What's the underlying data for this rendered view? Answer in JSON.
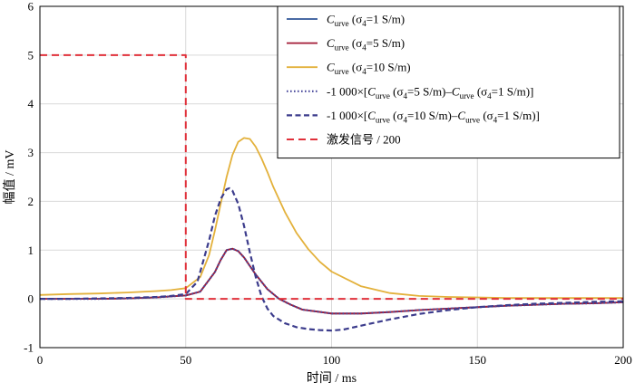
{
  "chart_data": {
    "type": "line",
    "title": "",
    "xlabel": "时间 / ms",
    "ylabel": "幅值 / mV",
    "xlim": [
      0,
      200
    ],
    "ylim": [
      -1,
      6
    ],
    "xticks": [
      0,
      50,
      100,
      150,
      200
    ],
    "yticks": [
      -1,
      0,
      1,
      2,
      3,
      4,
      5,
      6
    ],
    "grid": true,
    "legend_position": "top-right",
    "series": [
      {
        "name": "Curve (σ4=1 S/m)",
        "legend_label": {
          "main": "C",
          "sub": "urve",
          "rest": " (σ",
          "sub2": "4",
          "tail": "=1 S/m)"
        },
        "color": "#2f5597",
        "dash": "solid",
        "x": [
          0,
          10,
          20,
          30,
          40,
          45,
          50,
          55,
          60,
          62,
          64,
          66,
          68,
          70,
          74,
          78,
          82,
          86,
          90,
          100,
          110,
          120,
          130,
          140,
          150,
          160,
          170,
          180,
          190,
          200
        ],
        "y": [
          0.0,
          0.0,
          0.0,
          0.01,
          0.03,
          0.05,
          0.07,
          0.15,
          0.55,
          0.8,
          1.0,
          1.03,
          0.98,
          0.85,
          0.5,
          0.2,
          0.0,
          -0.12,
          -0.22,
          -0.3,
          -0.3,
          -0.27,
          -0.23,
          -0.2,
          -0.17,
          -0.14,
          -0.12,
          -0.1,
          -0.09,
          -0.07
        ]
      },
      {
        "name": "Curve (σ4=5 S/m)",
        "legend_label": {
          "main": "C",
          "sub": "urve",
          "rest": " (σ",
          "sub2": "4",
          "tail": "=5 S/m)"
        },
        "color": "#a31a35",
        "dash": "solid",
        "x": [
          0,
          10,
          20,
          30,
          40,
          45,
          50,
          55,
          60,
          62,
          64,
          66,
          68,
          70,
          74,
          78,
          82,
          86,
          90,
          100,
          110,
          120,
          130,
          140,
          150,
          160,
          170,
          180,
          190,
          200
        ],
        "y": [
          0.0,
          0.0,
          0.0,
          0.01,
          0.03,
          0.05,
          0.07,
          0.15,
          0.55,
          0.8,
          1.0,
          1.03,
          0.98,
          0.85,
          0.5,
          0.2,
          0.0,
          -0.12,
          -0.22,
          -0.3,
          -0.3,
          -0.27,
          -0.23,
          -0.2,
          -0.17,
          -0.14,
          -0.12,
          -0.1,
          -0.09,
          -0.07
        ]
      },
      {
        "name": "Curve (σ4=10 S/m)",
        "legend_label": {
          "main": "C",
          "sub": "urve",
          "rest": " (σ",
          "sub2": "4",
          "tail": "=10 S/m)"
        },
        "color": "#e3b13b",
        "dash": "solid",
        "x": [
          0,
          10,
          20,
          30,
          40,
          45,
          50,
          55,
          58,
          60,
          62,
          64,
          66,
          68,
          70,
          72,
          74,
          76,
          78,
          80,
          84,
          88,
          92,
          96,
          100,
          110,
          120,
          130,
          140,
          150,
          160,
          170,
          180,
          190,
          200
        ],
        "y": [
          0.08,
          0.1,
          0.11,
          0.13,
          0.16,
          0.18,
          0.22,
          0.45,
          0.9,
          1.4,
          1.95,
          2.5,
          2.95,
          3.22,
          3.3,
          3.28,
          3.12,
          2.88,
          2.6,
          2.3,
          1.78,
          1.35,
          1.02,
          0.76,
          0.56,
          0.26,
          0.12,
          0.06,
          0.04,
          0.03,
          0.02,
          0.02,
          0.02,
          0.02,
          0.02
        ]
      },
      {
        "name": "-1 000×[Curve (σ4=5 S/m)–Curve (σ4=1 S/m)]",
        "legend_label": {
          "prefix": "-1 000×[",
          "main": "C",
          "sub": "urve",
          "rest": " (σ",
          "sub2": "4",
          "tail": "=5 S/m)–",
          "main2": "C",
          "sub3": "urve",
          "rest2": " (σ",
          "sub4": "4",
          "tail2": "=1 S/m)]"
        },
        "color": "#4a4a9c",
        "dash": "dotted",
        "x": [
          0,
          10,
          20,
          30,
          40,
          45,
          50,
          55,
          60,
          62,
          64,
          66,
          68,
          70,
          74,
          78,
          82,
          86,
          90,
          100,
          110,
          120,
          130,
          140,
          150,
          160,
          170,
          180,
          190,
          200
        ],
        "y": [
          0.0,
          0.0,
          0.0,
          0.01,
          0.03,
          0.05,
          0.07,
          0.15,
          0.55,
          0.8,
          1.0,
          1.03,
          0.98,
          0.85,
          0.5,
          0.2,
          0.0,
          -0.12,
          -0.22,
          -0.3,
          -0.3,
          -0.27,
          -0.23,
          -0.2,
          -0.17,
          -0.14,
          -0.12,
          -0.1,
          -0.09,
          -0.07
        ]
      },
      {
        "name": "-1 000×[Curve (σ4=10 S/m)–Curve (σ4=1 S/m)]",
        "legend_label": {
          "prefix": "-1 000×[",
          "main": "C",
          "sub": "urve",
          "rest": " (σ",
          "sub2": "4",
          "tail": "=10 S/m)–",
          "main2": "C",
          "sub3": "urve",
          "rest2": " (σ",
          "sub4": "4",
          "tail2": "=1 S/m)]"
        },
        "color": "#3c3c8c",
        "dash": "dashed",
        "x": [
          0,
          10,
          20,
          30,
          40,
          45,
          50,
          54,
          58,
          60,
          62,
          64,
          65,
          66,
          68,
          70,
          72,
          74,
          76,
          78,
          80,
          84,
          88,
          92,
          96,
          100,
          104,
          110,
          120,
          130,
          140,
          150,
          160,
          170,
          180,
          190,
          200
        ],
        "y": [
          0.0,
          0.0,
          0.01,
          0.02,
          0.04,
          0.06,
          0.1,
          0.35,
          1.2,
          1.7,
          2.05,
          2.25,
          2.27,
          2.22,
          1.95,
          1.5,
          0.95,
          0.45,
          0.05,
          -0.2,
          -0.35,
          -0.5,
          -0.58,
          -0.62,
          -0.64,
          -0.65,
          -0.63,
          -0.55,
          -0.42,
          -0.31,
          -0.23,
          -0.17,
          -0.13,
          -0.1,
          -0.08,
          -0.06,
          -0.05
        ]
      },
      {
        "name": "激发信号 / 200",
        "legend_label": {
          "plain": "激发信号 / 200"
        },
        "color": "#e0303a",
        "dash": "longdash",
        "x": [
          0,
          50,
          50,
          200
        ],
        "y": [
          5,
          5,
          0,
          0
        ]
      }
    ]
  }
}
